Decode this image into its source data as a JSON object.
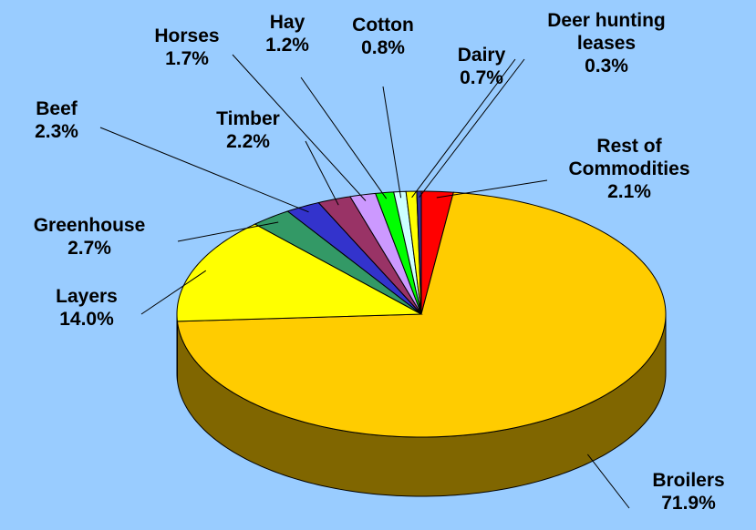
{
  "chart_data": {
    "type": "pie",
    "categories": [
      "Rest of Commodities",
      "Broilers",
      "Layers",
      "Greenhouse",
      "Beef",
      "Timber",
      "Horses",
      "Hay",
      "Cotton",
      "Dairy",
      "Deer hunting leases"
    ],
    "values": [
      2.1,
      71.9,
      14.0,
      2.7,
      2.3,
      2.2,
      1.7,
      1.2,
      0.8,
      0.7,
      0.3
    ],
    "value_labels": [
      "2.1%",
      "71.9%",
      "14.0%",
      "2.7%",
      "2.3%",
      "2.2%",
      "1.7%",
      "1.2%",
      "0.8%",
      "0.7%",
      "0.3%"
    ],
    "colors": [
      "#ff0000",
      "#ffcc00",
      "#ffff00",
      "#339966",
      "#3333cc",
      "#993366",
      "#cc99ff",
      "#00ff00",
      "#ccffff",
      "#ffff00",
      "#333399"
    ]
  }
}
